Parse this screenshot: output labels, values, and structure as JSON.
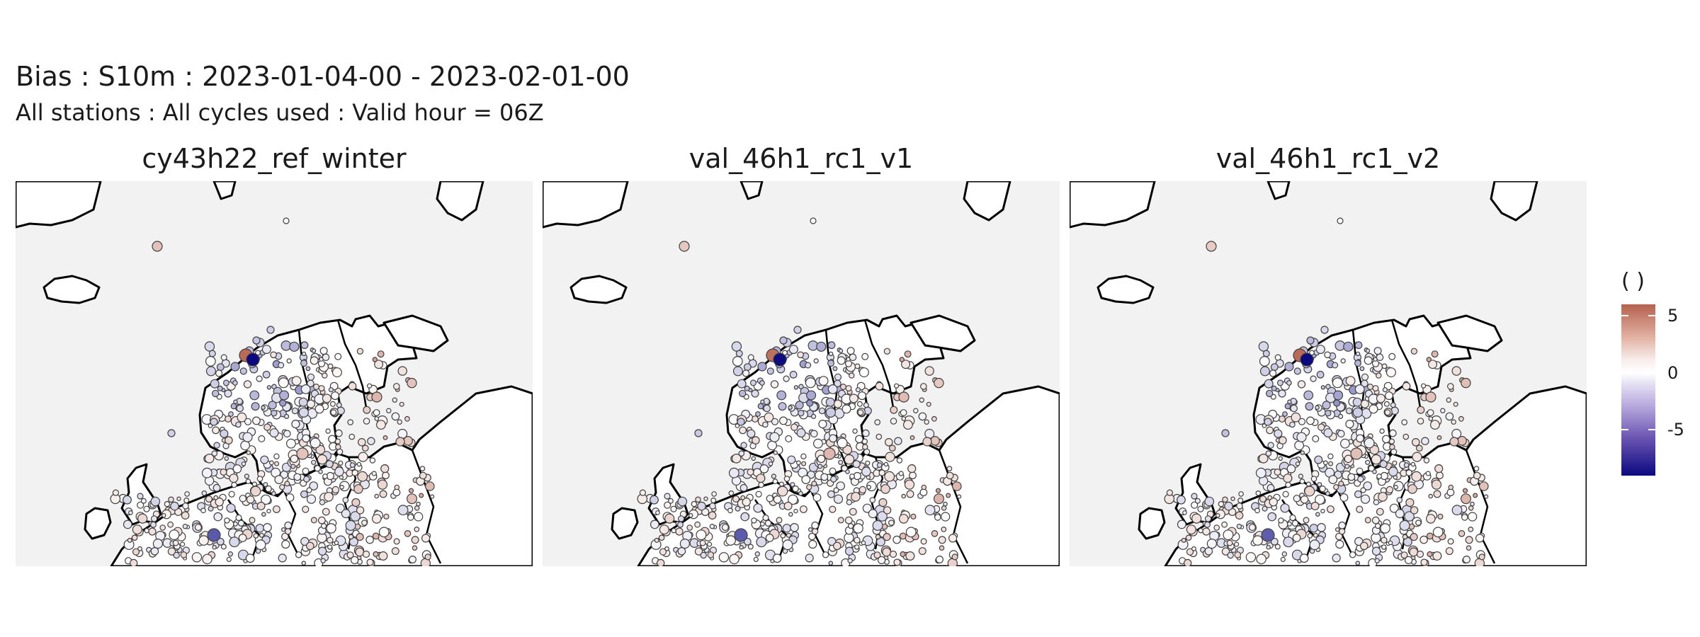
{
  "title": "Bias : S10m : 2023-01-04-00 - 2023-02-01-00",
  "subtitle": "All stations : All cycles used : Valid hour = 06Z",
  "panels": [
    {
      "label": "cy43h22_ref_winter"
    },
    {
      "label": "val_46h1_rc1_v1"
    },
    {
      "label": "val_46h1_rc1_v2"
    }
  ],
  "legend": {
    "title": "( )",
    "ticks": [
      {
        "label": "5",
        "value": 5
      },
      {
        "label": "0",
        "value": 0
      },
      {
        "label": "-5",
        "value": -5
      }
    ],
    "range": [
      -9,
      6
    ],
    "colors": {
      "high": "#b5614d",
      "mid": "#ffffff",
      "low": "#0b0880"
    }
  },
  "map": {
    "sea_color": "#f2f2f2",
    "land_color": "#ffffff",
    "coast_color": "#000000",
    "station_outline": "#404040"
  }
}
